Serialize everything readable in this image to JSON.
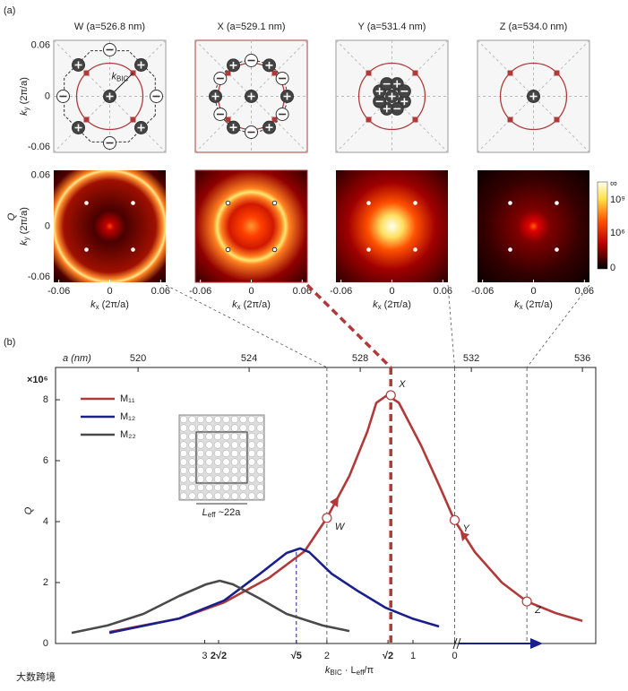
{
  "panel_labels": [
    "(a)",
    "(b)"
  ],
  "a_panels": {
    "titles": [
      "W (a=526.8 nm)",
      "X (a=529.1 nm)",
      "Y (a=531.4 nm)",
      "Z (a=534.0 nm)"
    ],
    "ylabel_parts": [
      "k",
      "y",
      " (2π/a)"
    ],
    "xlabel_parts": [
      "k",
      "x",
      " (2π/a)"
    ],
    "q_label": "Q",
    "kbic_parts": [
      "k",
      "BIC"
    ],
    "ticks": [
      -0.06,
      0,
      0.06
    ],
    "lim": [
      -0.066,
      0.066
    ],
    "colorbar": [
      "∞",
      "10⁹",
      "10⁶",
      "0"
    ]
  },
  "chart_data": {
    "type": "line",
    "xlabel": "a (nm)",
    "xlim": [
      517.03,
      536.48
    ],
    "xticks": [
      520,
      524,
      528,
      532,
      536
    ],
    "ylabel": "Q",
    "y_multiplier": "×10⁶",
    "ylim": [
      0,
      9.06
    ],
    "yticks": [
      0,
      2,
      4,
      6,
      8
    ],
    "klabel_parts": [
      "k",
      "BIC",
      " · L",
      "eff",
      "/π"
    ],
    "kticks": [
      {
        "value": 3,
        "label": "3",
        "a": 522.4,
        "color": "#333333"
      },
      {
        "value": 2.828,
        "label": "2√2",
        "a": 522.9,
        "color": "#4a4a4a"
      },
      {
        "value": 2.236,
        "label": "√5",
        "a": 525.7,
        "color": "#1a1f8c"
      },
      {
        "value": 2,
        "label": "2",
        "a": 526.8,
        "color": "#333333"
      },
      {
        "value": 1.414,
        "label": "√2",
        "a": 529.0,
        "color": "#b03a3a"
      },
      {
        "value": 1,
        "label": "1",
        "a": 529.9,
        "color": "#333333"
      },
      {
        "value": 0,
        "label": "0",
        "a": 531.4,
        "color": "#333333"
      }
    ],
    "series": [
      {
        "name": "M₁₁",
        "color": "#b03a3a",
        "x": [
          518.97,
          521.48,
          523.1,
          524.71,
          526.0,
          526.8,
          527.61,
          528.26,
          528.58,
          528.97,
          529.39,
          530.19,
          530.84,
          531.39,
          532.13,
          533.1,
          534.0,
          535.03,
          536.0
        ],
        "values": [
          0.38,
          0.82,
          1.35,
          2.15,
          3.03,
          4.12,
          5.5,
          6.97,
          7.9,
          8.15,
          7.9,
          6.5,
          5.2,
          4.05,
          3.0,
          2.0,
          1.38,
          1.0,
          0.74
        ]
      },
      {
        "name": "M₁₂",
        "color": "#1a1f8c",
        "x": [
          518.97,
          521.48,
          523.1,
          524.39,
          525.35,
          525.84,
          526.16,
          526.97,
          527.94,
          528.9,
          529.87,
          530.84
        ],
        "values": [
          0.35,
          0.82,
          1.41,
          2.29,
          2.97,
          3.12,
          3.0,
          2.29,
          1.71,
          1.18,
          0.82,
          0.56
        ]
      },
      {
        "name": "M₂₂",
        "color": "#4a4a4a",
        "x": [
          517.61,
          518.9,
          520.19,
          521.48,
          522.45,
          522.94,
          523.42,
          524.39,
          525.35,
          526.65,
          527.61
        ],
        "values": [
          0.35,
          0.59,
          0.97,
          1.56,
          1.94,
          2.06,
          1.94,
          1.47,
          0.97,
          0.59,
          0.41
        ]
      }
    ],
    "points": [
      {
        "label": "W",
        "x": 526.8,
        "y": 4.12
      },
      {
        "label": "X",
        "x": 529.1,
        "y": 8.15
      },
      {
        "label": "Y",
        "x": 531.4,
        "y": 4.05
      },
      {
        "label": "Z",
        "x": 534.0,
        "y": 1.38
      }
    ],
    "inset_label_parts": [
      "L",
      "eff",
      " ~22a"
    ]
  },
  "watermark": "大数跨境"
}
